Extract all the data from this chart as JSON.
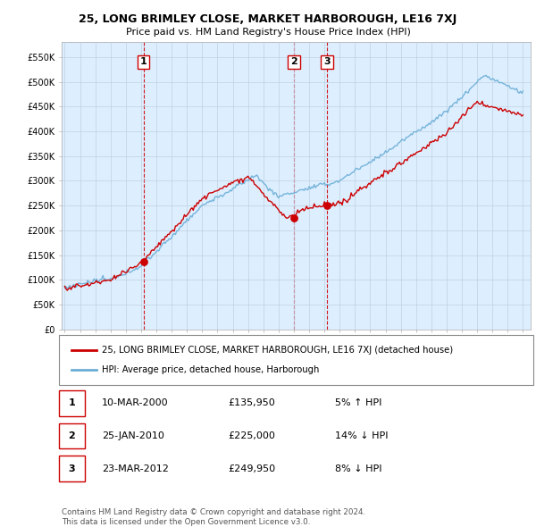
{
  "title": "25, LONG BRIMLEY CLOSE, MARKET HARBOROUGH, LE16 7XJ",
  "subtitle": "Price paid vs. HM Land Registry's House Price Index (HPI)",
  "legend_line1": "25, LONG BRIMLEY CLOSE, MARKET HARBOROUGH, LE16 7XJ (detached house)",
  "legend_line2": "HPI: Average price, detached house, Harborough",
  "transactions": [
    {
      "num": 1,
      "date": "10-MAR-2000",
      "price": 135950,
      "pct": "5%",
      "dir": "↑"
    },
    {
      "num": 2,
      "date": "25-JAN-2010",
      "price": 225000,
      "pct": "14%",
      "dir": "↓"
    },
    {
      "num": 3,
      "date": "23-MAR-2012",
      "price": 249950,
      "pct": "8%",
      "dir": "↓"
    }
  ],
  "footer1": "Contains HM Land Registry data © Crown copyright and database right 2024.",
  "footer2": "This data is licensed under the Open Government Licence v3.0.",
  "hpi_color": "#6baed6",
  "price_color": "#cc0000",
  "marker_color": "#cc0000",
  "transaction_vline_color": "#cc0000",
  "chart_bg": "#ddeeff",
  "ylim": [
    0,
    580000
  ],
  "yticks": [
    0,
    50000,
    100000,
    150000,
    200000,
    250000,
    300000,
    350000,
    400000,
    450000,
    500000,
    550000
  ],
  "background_color": "#ffffff",
  "grid_color": "#c0d0e0"
}
